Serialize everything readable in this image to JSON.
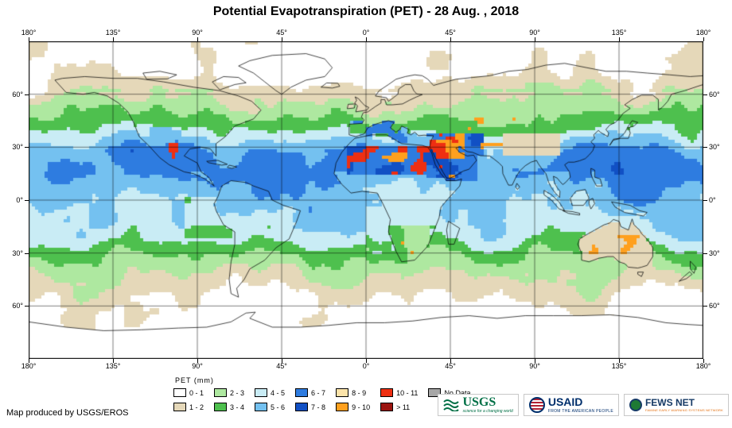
{
  "title": "Potential Evapotranspiration (PET) - 28 Aug. , 2018",
  "map": {
    "lon_labels": [
      "180°",
      "135°",
      "90°",
      "45°",
      "0°",
      "45°",
      "90°",
      "135°",
      "180°"
    ],
    "lat_labels": [
      "60°",
      "30°",
      "0°",
      "30°",
      "60°"
    ],
    "grid_color": "#000000"
  },
  "legend": {
    "title": "PET (mm)",
    "items": [
      {
        "label": "0 - 1",
        "color": "#FFFFFF"
      },
      {
        "label": "1 - 2",
        "color": "#E5D8B9"
      },
      {
        "label": "2 - 3",
        "color": "#AEE8A0"
      },
      {
        "label": "3 - 4",
        "color": "#4EC04E"
      },
      {
        "label": "4 - 5",
        "color": "#C9ECF5"
      },
      {
        "label": "5 - 6",
        "color": "#74C1F0"
      },
      {
        "label": "6 - 7",
        "color": "#2E7CE0"
      },
      {
        "label": "7 - 8",
        "color": "#1150C4"
      },
      {
        "label": "8 - 9",
        "color": "#FBE3A9"
      },
      {
        "label": "9 - 10",
        "color": "#FFA01E"
      },
      {
        "label": "10 - 11",
        "color": "#EE2F12"
      },
      {
        "label": "> 11",
        "color": "#9B1410"
      },
      {
        "label": "No Data",
        "color": "#A6A6A6"
      }
    ]
  },
  "credit": "Map produced by USGS/EROS",
  "logos": {
    "usgs": {
      "name": "USGS",
      "tagline": "science for a changing world",
      "color": "#006F45"
    },
    "usaid": {
      "name": "USAID",
      "tagline": "FROM THE AMERICAN PEOPLE",
      "color": "#002F6C",
      "accent": "#B22234"
    },
    "fews": {
      "name": "FEWS NET",
      "tagline": "FAMINE EARLY WARNING SYSTEMS NETWORK",
      "color": "#163A66",
      "accent": "#E36C0A"
    }
  }
}
